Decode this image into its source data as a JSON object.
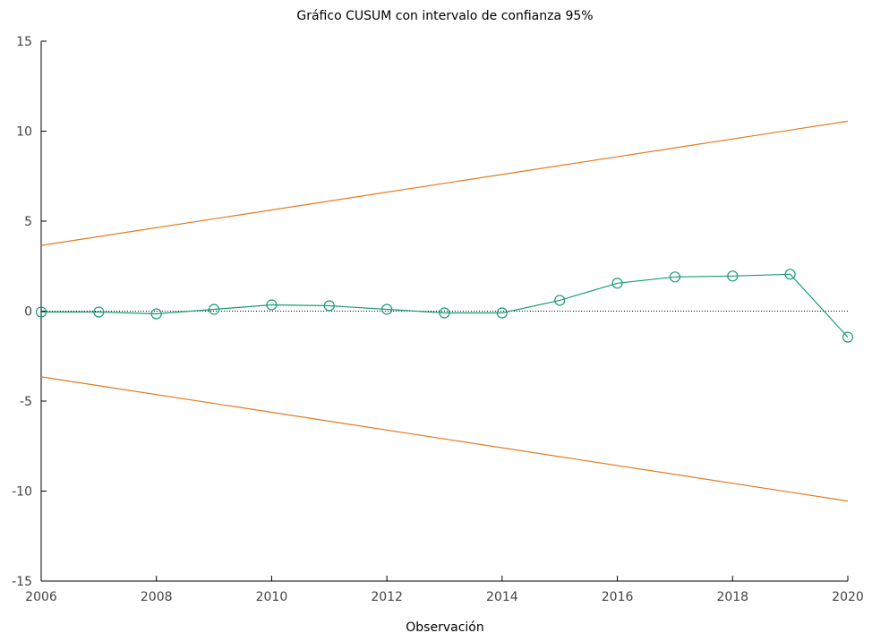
{
  "chart_data": {
    "type": "line",
    "title": "Gráfico CUSUM con intervalo de confianza 95%",
    "xlabel": "Observación",
    "ylabel": "",
    "xlim": [
      2006,
      2020
    ],
    "ylim": [
      -15,
      15
    ],
    "x_ticks": [
      "2006",
      "2008",
      "2010",
      "2012",
      "2014",
      "2016",
      "2018",
      "2020"
    ],
    "y_ticks": [
      "15",
      "10",
      "5",
      "0",
      "-5",
      "-10",
      "-15"
    ],
    "x_tick_values": [
      2006,
      2008,
      2010,
      2012,
      2014,
      2016,
      2018,
      2020
    ],
    "y_tick_values": [
      15,
      10,
      5,
      0,
      -5,
      -10,
      -15
    ],
    "grid": false,
    "zero_line": {
      "y": 0,
      "style": "dotted",
      "color": "#000000"
    },
    "series": [
      {
        "x": [
          2006,
          2007,
          2008,
          2009,
          2010,
          2011,
          2012,
          2013,
          2014,
          2015,
          2016,
          2017,
          2018,
          2019,
          2020
        ],
        "y": [
          -0.05,
          -0.05,
          -0.15,
          0.1,
          0.35,
          0.3,
          0.1,
          -0.1,
          -0.1,
          0.6,
          1.55,
          1.9,
          1.95,
          2.05,
          -1.45
        ],
        "color": "#1a9a78",
        "marker": "circle"
      },
      {
        "x": [
          2006,
          2020
        ],
        "y": [
          3.65,
          10.55
        ],
        "color": "#e07b20",
        "marker": "none"
      },
      {
        "x": [
          2006,
          2020
        ],
        "y": [
          -3.65,
          -10.55
        ],
        "color": "#e07b20",
        "marker": "none"
      }
    ]
  }
}
